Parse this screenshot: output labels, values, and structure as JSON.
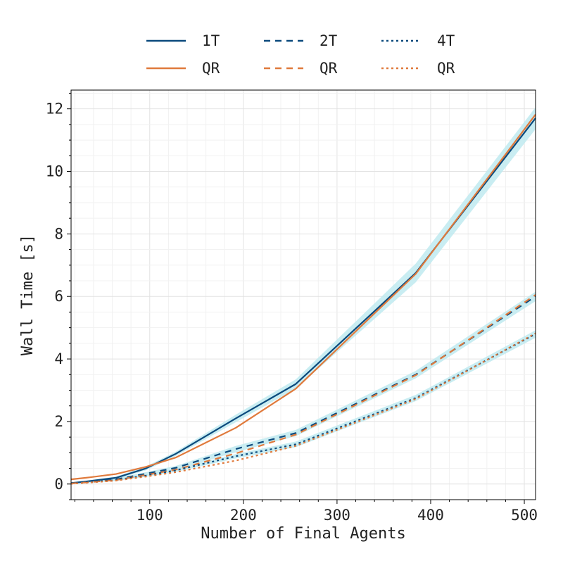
{
  "chart_data": {
    "type": "line",
    "xlabel": "Number of Final Agents",
    "ylabel": "Wall Time [s]",
    "xlim": [
      16,
      512
    ],
    "ylim": [
      -0.5,
      12.6
    ],
    "xticks": [
      100,
      200,
      300,
      400,
      500
    ],
    "yticks": [
      0,
      2,
      4,
      6,
      8,
      10,
      12
    ],
    "grid": true,
    "legend_position": "top",
    "x": [
      16,
      32,
      64,
      96,
      128,
      192,
      256,
      384,
      512
    ],
    "series": [
      {
        "name": "1T",
        "color": "#0b4a7d",
        "dash": "solid",
        "values": [
          0.03,
          0.08,
          0.2,
          0.5,
          0.97,
          2.1,
          3.2,
          6.75,
          11.7
        ],
        "band": [
          [
            0.0,
            0.06
          ],
          [
            0.05,
            0.11
          ],
          [
            0.16,
            0.24
          ],
          [
            0.44,
            0.56
          ],
          [
            0.9,
            1.04
          ],
          [
            1.98,
            2.22
          ],
          [
            3.05,
            3.35
          ],
          [
            6.45,
            7.05
          ],
          [
            11.35,
            12.05
          ]
        ]
      },
      {
        "name": "QR",
        "color": "#e07a3c",
        "dash": "solid",
        "values": [
          0.15,
          0.2,
          0.32,
          0.55,
          0.85,
          1.8,
          3.05,
          6.72,
          11.82
        ]
      },
      {
        "name": "2T",
        "color": "#0b4a7d",
        "dash": "dashed",
        "values": [
          0.02,
          0.06,
          0.15,
          0.33,
          0.52,
          1.12,
          1.63,
          3.5,
          6.0
        ],
        "band": [
          [
            0.0,
            0.04
          ],
          [
            0.03,
            0.09
          ],
          [
            0.11,
            0.19
          ],
          [
            0.28,
            0.38
          ],
          [
            0.46,
            0.58
          ],
          [
            1.02,
            1.22
          ],
          [
            1.53,
            1.73
          ],
          [
            3.38,
            3.62
          ],
          [
            5.85,
            6.15
          ]
        ]
      },
      {
        "name": "QR",
        "color": "#e07a3c",
        "dash": "dashed",
        "values": [
          0.02,
          0.05,
          0.13,
          0.29,
          0.46,
          0.98,
          1.58,
          3.48,
          6.05
        ]
      },
      {
        "name": "4T",
        "color": "#0b4a7d",
        "dash": "dotted",
        "values": [
          0.02,
          0.05,
          0.13,
          0.27,
          0.44,
          0.89,
          1.27,
          2.75,
          4.8
        ],
        "band": [
          [
            0.0,
            0.04
          ],
          [
            0.03,
            0.07
          ],
          [
            0.1,
            0.16
          ],
          [
            0.23,
            0.31
          ],
          [
            0.39,
            0.49
          ],
          [
            0.82,
            0.96
          ],
          [
            1.18,
            1.36
          ],
          [
            2.65,
            2.85
          ],
          [
            4.68,
            4.92
          ]
        ]
      },
      {
        "name": "QR",
        "color": "#e07a3c",
        "dash": "dotted",
        "values": [
          0.01,
          0.04,
          0.11,
          0.24,
          0.38,
          0.75,
          1.22,
          2.72,
          4.82
        ]
      }
    ],
    "band_color": "#bfeaf0"
  }
}
